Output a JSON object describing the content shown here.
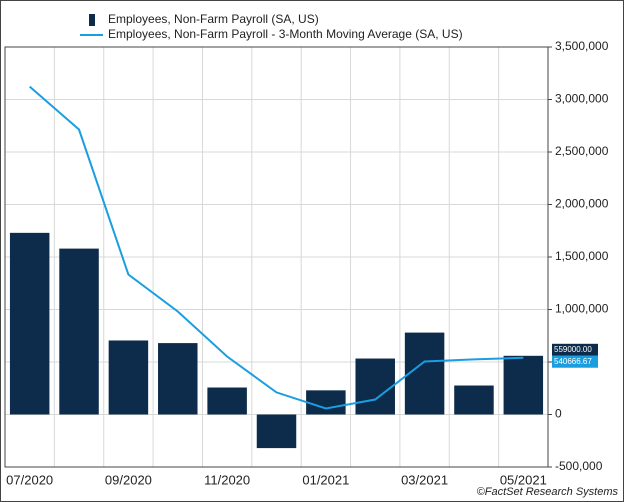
{
  "chart_data": {
    "type": "bar",
    "categories": [
      "07/2020",
      null,
      "09/2020",
      null,
      "11/2020",
      null,
      "01/2021",
      null,
      "03/2021",
      null,
      "05/2021"
    ],
    "series": [
      {
        "name": "Employees, Non-Farm Payroll  (SA, US)",
        "type": "bar",
        "color": "#0d2b4a",
        "values": [
          1730000,
          1580000,
          705000,
          680000,
          257000,
          -320000,
          230000,
          533000,
          780000,
          276000,
          559000
        ],
        "value_labels": [
          null,
          null,
          null,
          null,
          null,
          null,
          null,
          null,
          null,
          null,
          "559000.00"
        ]
      },
      {
        "name": "Employees, Non-Farm Payroll - 3-Month Moving Average (SA, US)",
        "type": "line",
        "color": "#1a9ee0",
        "values": [
          3123000,
          2714000,
          1333000,
          981000,
          552000,
          210000,
          57000,
          143000,
          505000,
          525000,
          540666.67
        ],
        "value_labels": [
          null,
          null,
          null,
          null,
          null,
          null,
          null,
          null,
          null,
          null,
          "540666.67"
        ]
      }
    ],
    "ylim": [
      -500000,
      3500000
    ],
    "yticks": [
      {
        "value": -500000,
        "label": "-500,000"
      },
      0,
      {
        "value": 500000,
        "label": "500,000"
      },
      {
        "value": 1000000,
        "label": "1,000,000"
      },
      {
        "value": 1500000,
        "label": "1,500,000"
      },
      {
        "value": 2000000,
        "label": "2,000,000"
      },
      {
        "value": 2500000,
        "label": "2,500,000"
      },
      {
        "value": 3000000,
        "label": "3,000,000"
      },
      {
        "value": 3500000,
        "label": "3,500,000"
      }
    ],
    "grid": true,
    "legend": "top-left",
    "source": "©FactSet Research Systems"
  }
}
